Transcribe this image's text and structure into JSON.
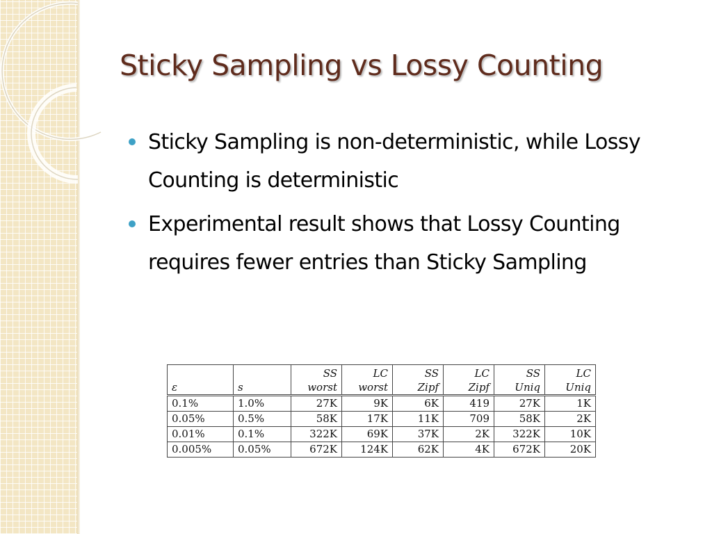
{
  "slide": {
    "title": "Sticky Sampling vs Lossy Counting",
    "bullets": [
      "Sticky Sampling is non-deterministic, while Lossy Counting is deterministic",
      "Experimental result shows that Lossy Counting requires fewer entries than Sticky Sampling"
    ],
    "colors": {
      "title": "#5f2b1c",
      "bullet": "#3ea1c6",
      "sidebar": "#f3e6c4"
    }
  },
  "table": {
    "headers": [
      {
        "line1": "",
        "line2": "ε"
      },
      {
        "line1": "",
        "line2": "s"
      },
      {
        "line1": "SS",
        "line2": "worst"
      },
      {
        "line1": "LC",
        "line2": "worst"
      },
      {
        "line1": "SS",
        "line2": "Zipf"
      },
      {
        "line1": "LC",
        "line2": "Zipf"
      },
      {
        "line1": "SS",
        "line2": "Uniq"
      },
      {
        "line1": "LC",
        "line2": "Uniq"
      }
    ],
    "rows": [
      [
        "0.1%",
        "1.0%",
        "27K",
        "9K",
        "6K",
        "419",
        "27K",
        "1K"
      ],
      [
        "0.05%",
        "0.5%",
        "58K",
        "17K",
        "11K",
        "709",
        "58K",
        "2K"
      ],
      [
        "0.01%",
        "0.1%",
        "322K",
        "69K",
        "37K",
        "2K",
        "322K",
        "10K"
      ],
      [
        "0.005%",
        "0.05%",
        "672K",
        "124K",
        "62K",
        "4K",
        "672K",
        "20K"
      ]
    ]
  }
}
